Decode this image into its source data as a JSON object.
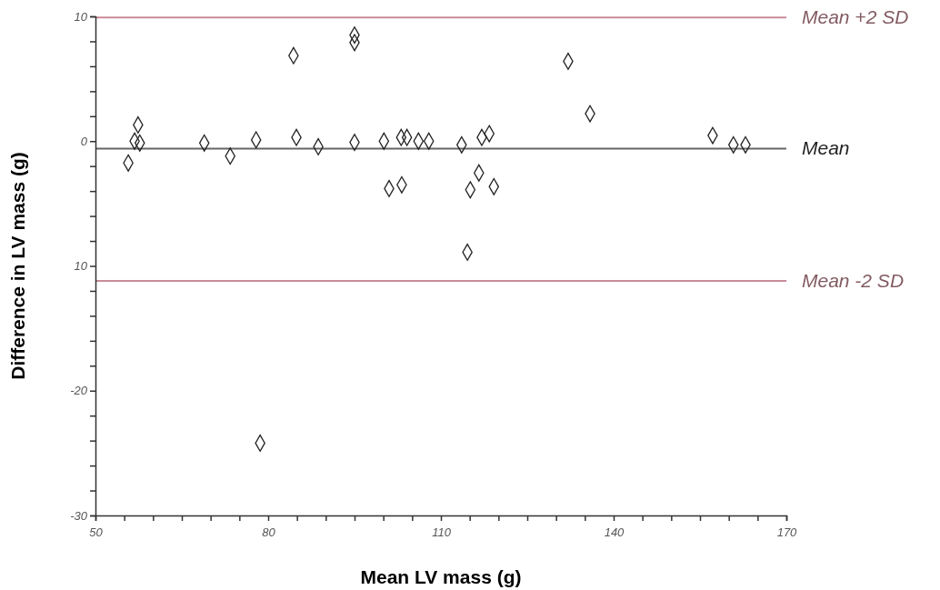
{
  "chart_data": {
    "type": "scatter",
    "xlabel": "Mean LV mass (g)",
    "ylabel": "Difference in LV mass (g)",
    "xlim": [
      50,
      170
    ],
    "ylim": [
      -30,
      10
    ],
    "xticks": [
      50,
      {
        "value": 55,
        "label": null
      },
      {
        "value": 60,
        "label": null
      },
      {
        "value": 65,
        "label": null
      },
      {
        "value": 70,
        "label": null
      },
      {
        "value": 75,
        "label": null
      },
      80,
      {
        "value": 85,
        "label": null
      },
      {
        "value": 90,
        "label": null
      },
      {
        "value": 95,
        "label": null
      },
      {
        "value": 100,
        "label": null
      },
      {
        "value": 105,
        "label": null
      },
      110,
      {
        "value": 115,
        "label": null
      },
      {
        "value": 120,
        "label": null
      },
      {
        "value": 125,
        "label": null
      },
      {
        "value": 130,
        "label": null
      },
      {
        "value": 135,
        "label": null
      },
      140,
      {
        "value": 145,
        "label": null
      },
      {
        "value": 150,
        "label": null
      },
      {
        "value": 155,
        "label": null
      },
      {
        "value": 160,
        "label": null
      },
      {
        "value": 165,
        "label": null
      },
      170
    ],
    "yticks": [
      -30,
      {
        "value": -28,
        "label": null
      },
      {
        "value": -26,
        "label": null
      },
      {
        "value": -24,
        "label": null
      },
      {
        "value": -22,
        "label": null
      },
      -20,
      {
        "value": -18,
        "label": null
      },
      {
        "value": -16,
        "label": null
      },
      {
        "value": -14,
        "label": null
      },
      {
        "value": -12,
        "label": null
      },
      {
        "value": -10,
        "label": "10"
      },
      {
        "value": -8,
        "label": null
      },
      {
        "value": -6,
        "label": null
      },
      {
        "value": -4,
        "label": null
      },
      {
        "value": -2,
        "label": null
      },
      0,
      {
        "value": 2,
        "label": null
      },
      {
        "value": 4,
        "label": null
      },
      {
        "value": 6,
        "label": null
      },
      {
        "value": 8,
        "label": null
      },
      10
    ],
    "marker": "diamond",
    "series": [
      {
        "color": "#222222",
        "x": [
          55.7,
          56.8,
          57.4,
          57.7,
          68.9,
          73.4,
          77.9,
          78.6,
          84.4,
          84.9,
          88.7,
          95.0,
          95.0,
          95.0,
          100.1,
          101.0,
          103.2,
          103.1,
          104.1,
          106.1,
          107.9,
          113.6,
          114.6,
          115.1,
          116.6,
          117.1,
          118.4,
          119.2,
          132.1,
          135.9,
          157.2,
          160.8,
          162.9
        ],
        "values": [
          -1.75,
          0,
          1.3,
          -0.15,
          -0.15,
          -1.2,
          0.1,
          -24.2,
          6.85,
          0.3,
          -0.45,
          8.5,
          7.9,
          -0.1,
          0,
          -3.8,
          -3.5,
          0.3,
          0.3,
          0,
          0,
          -0.3,
          -8.9,
          -3.9,
          -2.55,
          0.3,
          0.6,
          -3.65,
          6.4,
          2.2,
          0.45,
          -0.3,
          -0.3
        ]
      }
    ],
    "ref_lines": [
      {
        "axis": "y",
        "value": 9.9,
        "label": "Mean +2 SD",
        "color": "#c98b96"
      },
      {
        "axis": "y",
        "value": -0.6,
        "label": "Mean",
        "color": "#666666"
      },
      {
        "axis": "y",
        "value": -11.2,
        "label": "Mean -2 SD",
        "color": "#c98b96"
      }
    ]
  }
}
